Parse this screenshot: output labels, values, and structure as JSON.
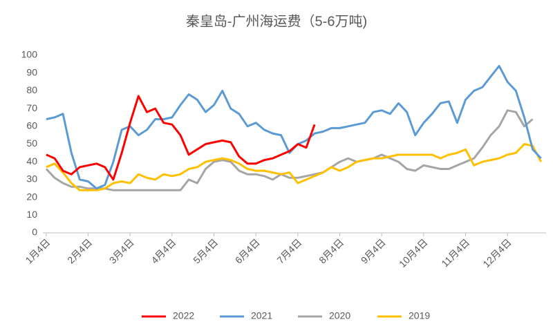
{
  "chart_data": {
    "type": "line",
    "title": "秦皇岛-广州海运费（5-6万吨)",
    "categories": [
      "1月4日",
      null,
      null,
      null,
      null,
      "2月4日",
      null,
      null,
      null,
      null,
      "3月4日",
      null,
      null,
      null,
      null,
      "4月4日",
      null,
      null,
      null,
      null,
      "5月4日",
      null,
      null,
      null,
      null,
      "6月4日",
      null,
      null,
      null,
      null,
      "7月4日",
      null,
      null,
      null,
      null,
      "8月4日",
      null,
      null,
      null,
      null,
      "9月4日",
      null,
      null,
      null,
      null,
      "10月4日",
      null,
      null,
      null,
      null,
      "11月4日",
      null,
      null,
      null,
      null,
      "12月4日",
      null,
      null,
      null,
      null
    ],
    "series": [
      {
        "name": "2020",
        "color": "#a5a5a5",
        "values": [
          36,
          31,
          28,
          26,
          26,
          25,
          25,
          25,
          24,
          24,
          24,
          24,
          24,
          24,
          24,
          24,
          24,
          30,
          28,
          36,
          40,
          41,
          40,
          35,
          33,
          33,
          32,
          30,
          33,
          31,
          31,
          32,
          33,
          34,
          37,
          40,
          42,
          40,
          41,
          42,
          44,
          42,
          40,
          36,
          35,
          38,
          37,
          36,
          36,
          38,
          40,
          42,
          48,
          55,
          60,
          69,
          68,
          60,
          64,
          null
        ]
      },
      {
        "name": "2019",
        "color": "#ffc000",
        "values": [
          37,
          39,
          34,
          28,
          24,
          24,
          24,
          25,
          28,
          29,
          28,
          33,
          31,
          30,
          33,
          32,
          33,
          36,
          37,
          40,
          41,
          42,
          41,
          39,
          36,
          35,
          35,
          34,
          33,
          34,
          28,
          30,
          32,
          34,
          37,
          35,
          37,
          40,
          41,
          42,
          42,
          43,
          44,
          44,
          44,
          44,
          44,
          42,
          44,
          45,
          47,
          38,
          40,
          41,
          42,
          44,
          45,
          50,
          49,
          40
        ]
      },
      {
        "name": "2021",
        "color": "#5b9bd5",
        "values": [
          64,
          65,
          67,
          45,
          30,
          29,
          25,
          27,
          40,
          58,
          60,
          55,
          58,
          64,
          64,
          65,
          72,
          78,
          75,
          68,
          72,
          80,
          70,
          67,
          60,
          62,
          58,
          56,
          55,
          45,
          50,
          52,
          56,
          57,
          59,
          59,
          60,
          61,
          62,
          68,
          69,
          67,
          73,
          68,
          55,
          62,
          67,
          73,
          74,
          62,
          75,
          80,
          82,
          88,
          94,
          85,
          80,
          65,
          47,
          42
        ]
      },
      {
        "name": "2022",
        "color": "#ff0000",
        "values": [
          44,
          42,
          35,
          33,
          37,
          38,
          39,
          37,
          30,
          45,
          62,
          77,
          68,
          70,
          62,
          61,
          55,
          44,
          47,
          50,
          51,
          52,
          51,
          43,
          39,
          39,
          41,
          42,
          44,
          46,
          50,
          48,
          61,
          null,
          null,
          null,
          null,
          null,
          null,
          null,
          null,
          null,
          null,
          null,
          null,
          null,
          null,
          null,
          null,
          null,
          null,
          null,
          null,
          null,
          null,
          null,
          null,
          null,
          null,
          null
        ]
      }
    ],
    "legend_order": [
      "2022",
      "2021",
      "2020",
      "2019"
    ],
    "ylim": [
      0,
      100
    ],
    "yticks": [
      0,
      10,
      20,
      30,
      40,
      50,
      60,
      70,
      80,
      90,
      100
    ],
    "grid": false,
    "legend": "bottom"
  }
}
